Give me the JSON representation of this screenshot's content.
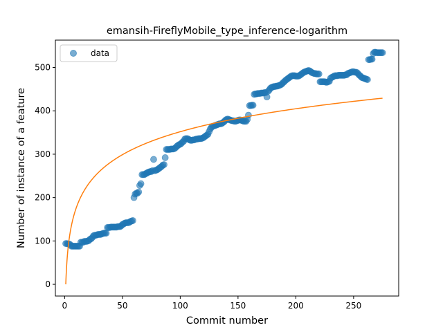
{
  "chart_data": {
    "type": "scatter",
    "title": "emansih-FireflyMobile_type_inference-logarithm",
    "xlabel": "Commit number",
    "ylabel": "Number of instance of a feature",
    "xlim": [
      -8,
      289
    ],
    "ylim": [
      -27,
      563
    ],
    "xticks": [
      0,
      50,
      100,
      150,
      200,
      250
    ],
    "yticks": [
      0,
      100,
      200,
      300,
      400,
      500
    ],
    "legend": {
      "position": "upper-left",
      "entries": [
        "data"
      ]
    },
    "colors": {
      "data": "#1f77b4",
      "fit": "#ff7f0e"
    },
    "series": [
      {
        "name": "data",
        "kind": "scatter",
        "points": [
          [
            1,
            94
          ],
          [
            2,
            94
          ],
          [
            3,
            93
          ],
          [
            4,
            93
          ],
          [
            5,
            91
          ],
          [
            6,
            88
          ],
          [
            7,
            88
          ],
          [
            8,
            88
          ],
          [
            9,
            88
          ],
          [
            10,
            88
          ],
          [
            11,
            88
          ],
          [
            12,
            88
          ],
          [
            13,
            88
          ],
          [
            14,
            97
          ],
          [
            15,
            97
          ],
          [
            16,
            97
          ],
          [
            17,
            99
          ],
          [
            18,
            99
          ],
          [
            19,
            99
          ],
          [
            20,
            100
          ],
          [
            21,
            101
          ],
          [
            22,
            104
          ],
          [
            23,
            105
          ],
          [
            24,
            108
          ],
          [
            25,
            112
          ],
          [
            26,
            113
          ],
          [
            27,
            113
          ],
          [
            28,
            114
          ],
          [
            29,
            115
          ],
          [
            30,
            115
          ],
          [
            31,
            115
          ],
          [
            32,
            116
          ],
          [
            33,
            117
          ],
          [
            34,
            118
          ],
          [
            35,
            118
          ],
          [
            36,
            118
          ],
          [
            37,
            131
          ],
          [
            38,
            131
          ],
          [
            39,
            131
          ],
          [
            40,
            132
          ],
          [
            41,
            132
          ],
          [
            42,
            132
          ],
          [
            43,
            132
          ],
          [
            44,
            132
          ],
          [
            45,
            132
          ],
          [
            46,
            133
          ],
          [
            47,
            133
          ],
          [
            48,
            133
          ],
          [
            49,
            135
          ],
          [
            50,
            138
          ],
          [
            51,
            139
          ],
          [
            52,
            141
          ],
          [
            53,
            142
          ],
          [
            54,
            142
          ],
          [
            55,
            142
          ],
          [
            56,
            143
          ],
          [
            57,
            145
          ],
          [
            58,
            146
          ],
          [
            59,
            147
          ],
          [
            60,
            200
          ],
          [
            61,
            208
          ],
          [
            62,
            210
          ],
          [
            63,
            210
          ],
          [
            64,
            213
          ],
          [
            65,
            228
          ],
          [
            66,
            232
          ],
          [
            67,
            253
          ],
          [
            68,
            253
          ],
          [
            69,
            253
          ],
          [
            70,
            255
          ],
          [
            71,
            256
          ],
          [
            72,
            258
          ],
          [
            73,
            259
          ],
          [
            74,
            260
          ],
          [
            75,
            260
          ],
          [
            76,
            262
          ],
          [
            77,
            288
          ],
          [
            78,
            262
          ],
          [
            79,
            263
          ],
          [
            80,
            264
          ],
          [
            81,
            266
          ],
          [
            82,
            268
          ],
          [
            83,
            270
          ],
          [
            84,
            272
          ],
          [
            85,
            275
          ],
          [
            86,
            276
          ],
          [
            87,
            292
          ],
          [
            88,
            311
          ],
          [
            89,
            311
          ],
          [
            90,
            311
          ],
          [
            91,
            311
          ],
          [
            92,
            312
          ],
          [
            93,
            312
          ],
          [
            94,
            312
          ],
          [
            95,
            313
          ],
          [
            96,
            315
          ],
          [
            97,
            318
          ],
          [
            98,
            320
          ],
          [
            99,
            322
          ],
          [
            100,
            323
          ],
          [
            101,
            325
          ],
          [
            102,
            328
          ],
          [
            103,
            330
          ],
          [
            104,
            335
          ],
          [
            105,
            336
          ],
          [
            106,
            336
          ],
          [
            107,
            335
          ],
          [
            108,
            333
          ],
          [
            109,
            332
          ],
          [
            110,
            332
          ],
          [
            111,
            333
          ],
          [
            112,
            333
          ],
          [
            113,
            334
          ],
          [
            114,
            335
          ],
          [
            115,
            335
          ],
          [
            116,
            336
          ],
          [
            117,
            336
          ],
          [
            118,
            336
          ],
          [
            119,
            337
          ],
          [
            120,
            338
          ],
          [
            121,
            340
          ],
          [
            122,
            342
          ],
          [
            123,
            344
          ],
          [
            124,
            346
          ],
          [
            125,
            352
          ],
          [
            126,
            358
          ],
          [
            127,
            362
          ],
          [
            128,
            364
          ],
          [
            129,
            365
          ],
          [
            130,
            366
          ],
          [
            131,
            367
          ],
          [
            132,
            368
          ],
          [
            133,
            369
          ],
          [
            134,
            370
          ],
          [
            135,
            370
          ],
          [
            136,
            371
          ],
          [
            137,
            373
          ],
          [
            138,
            375
          ],
          [
            139,
            378
          ],
          [
            140,
            380
          ],
          [
            141,
            381
          ],
          [
            142,
            380
          ],
          [
            143,
            379
          ],
          [
            144,
            378
          ],
          [
            145,
            377
          ],
          [
            146,
            377
          ],
          [
            147,
            376
          ],
          [
            148,
            376
          ],
          [
            149,
            377
          ],
          [
            150,
            378
          ],
          [
            151,
            379
          ],
          [
            152,
            379
          ],
          [
            153,
            378
          ],
          [
            154,
            377
          ],
          [
            155,
            376
          ],
          [
            156,
            376
          ],
          [
            157,
            376
          ],
          [
            158,
            380
          ],
          [
            159,
            390
          ],
          [
            160,
            412
          ],
          [
            161,
            412
          ],
          [
            162,
            413
          ],
          [
            163,
            413
          ],
          [
            164,
            438
          ],
          [
            165,
            439
          ],
          [
            166,
            439
          ],
          [
            167,
            440
          ],
          [
            168,
            440
          ],
          [
            169,
            440
          ],
          [
            170,
            441
          ],
          [
            171,
            441
          ],
          [
            172,
            441
          ],
          [
            173,
            442
          ],
          [
            174,
            442
          ],
          [
            175,
            432
          ],
          [
            176,
            445
          ],
          [
            177,
            448
          ],
          [
            178,
            452
          ],
          [
            179,
            454
          ],
          [
            180,
            455
          ],
          [
            181,
            456
          ],
          [
            182,
            456
          ],
          [
            183,
            457
          ],
          [
            184,
            457
          ],
          [
            185,
            458
          ],
          [
            186,
            459
          ],
          [
            187,
            460
          ],
          [
            188,
            462
          ],
          [
            189,
            465
          ],
          [
            190,
            467
          ],
          [
            191,
            470
          ],
          [
            192,
            472
          ],
          [
            193,
            474
          ],
          [
            194,
            476
          ],
          [
            195,
            478
          ],
          [
            196,
            480
          ],
          [
            197,
            481
          ],
          [
            198,
            481
          ],
          [
            199,
            481
          ],
          [
            200,
            480
          ],
          [
            201,
            480
          ],
          [
            202,
            480
          ],
          [
            203,
            481
          ],
          [
            204,
            483
          ],
          [
            205,
            485
          ],
          [
            206,
            487
          ],
          [
            207,
            489
          ],
          [
            208,
            490
          ],
          [
            209,
            491
          ],
          [
            210,
            492
          ],
          [
            211,
            493
          ],
          [
            212,
            492
          ],
          [
            213,
            490
          ],
          [
            214,
            488
          ],
          [
            215,
            487
          ],
          [
            216,
            486
          ],
          [
            217,
            486
          ],
          [
            218,
            485
          ],
          [
            219,
            485
          ],
          [
            220,
            485
          ],
          [
            221,
            467
          ],
          [
            222,
            467
          ],
          [
            223,
            467
          ],
          [
            224,
            467
          ],
          [
            225,
            467
          ],
          [
            226,
            466
          ],
          [
            227,
            466
          ],
          [
            228,
            467
          ],
          [
            229,
            468
          ],
          [
            230,
            475
          ],
          [
            231,
            477
          ],
          [
            232,
            478
          ],
          [
            233,
            480
          ],
          [
            234,
            481
          ],
          [
            235,
            481
          ],
          [
            236,
            481
          ],
          [
            237,
            482
          ],
          [
            238,
            482
          ],
          [
            239,
            482
          ],
          [
            240,
            482
          ],
          [
            241,
            482
          ],
          [
            242,
            482
          ],
          [
            243,
            483
          ],
          [
            244,
            483
          ],
          [
            245,
            486
          ],
          [
            246,
            487
          ],
          [
            247,
            488
          ],
          [
            248,
            489
          ],
          [
            249,
            490
          ],
          [
            250,
            490
          ],
          [
            251,
            489
          ],
          [
            252,
            489
          ],
          [
            253,
            488
          ],
          [
            254,
            485
          ],
          [
            255,
            482
          ],
          [
            256,
            480
          ],
          [
            257,
            477
          ],
          [
            258,
            476
          ],
          [
            259,
            475
          ],
          [
            260,
            474
          ],
          [
            261,
            473
          ],
          [
            262,
            472
          ],
          [
            263,
            518
          ],
          [
            264,
            518
          ],
          [
            265,
            519
          ],
          [
            266,
            519
          ],
          [
            267,
            532
          ],
          [
            268,
            535
          ],
          [
            269,
            535
          ],
          [
            270,
            534
          ],
          [
            271,
            534
          ],
          [
            272,
            534
          ],
          [
            273,
            534
          ],
          [
            274,
            534
          ],
          [
            275,
            534
          ]
        ]
      },
      {
        "name": "",
        "kind": "line",
        "model": "logarithmic",
        "coefficients": {
          "a": 76.4,
          "b": 0
        },
        "x_range": [
          1,
          275
        ]
      }
    ]
  }
}
